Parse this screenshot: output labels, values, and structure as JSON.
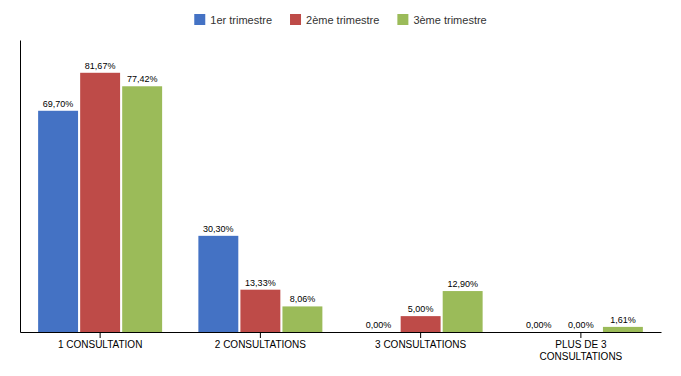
{
  "chart_data": {
    "type": "bar",
    "categories": [
      "1 CONSULTATION",
      "2 CONSULTATIONS",
      "3 CONSULTATIONS",
      "PLUS DE 3\nCONSULTATIONS"
    ],
    "series": [
      {
        "name": "1er trimestre",
        "color": "#4472C4",
        "values": [
          69.7,
          30.3,
          0.0,
          0.0
        ],
        "value_labels": [
          "69,70%",
          "30,30%",
          "0,00%",
          "0,00%"
        ]
      },
      {
        "name": "2ème trimestre",
        "color": "#BE4B48",
        "values": [
          81.67,
          13.33,
          5.0,
          0.0
        ],
        "value_labels": [
          "81,67%",
          "13,33%",
          "5,00%",
          "0,00%"
        ]
      },
      {
        "name": "3ème trimestre",
        "color": "#9BBB59",
        "values": [
          77.42,
          8.06,
          12.9,
          1.61
        ],
        "value_labels": [
          "77,42%",
          "8,06%",
          "12,90%",
          "1,61%"
        ]
      }
    ],
    "ylim": [
      0,
      92
    ],
    "data_labels": true,
    "legend": "top",
    "tick_labels": "x",
    "grid": false
  }
}
